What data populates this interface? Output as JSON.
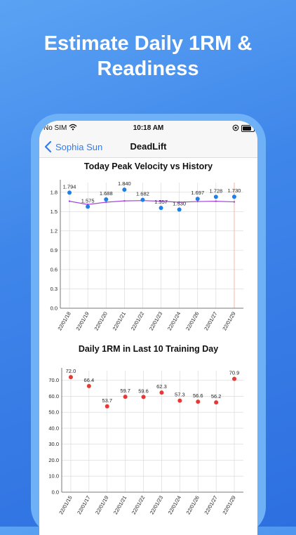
{
  "promo": {
    "headline_line1": "Estimate Daily 1RM &",
    "headline_line2": "Readiness"
  },
  "status_bar": {
    "carrier": "No SIM",
    "time": "10:18 AM"
  },
  "nav": {
    "back_label": "Sophia Sun",
    "title": "DeadLift"
  },
  "colors": {
    "accent": "#2f7cf6",
    "velocity_point": "#1e7fe6",
    "trend_line": "#a445d8",
    "rm_point": "#e53935",
    "today_line": "#f5b7a6"
  },
  "icons": {
    "wifi": "wifi-icon",
    "rotation_lock": "rotation-lock-icon",
    "battery": "battery-icon",
    "back": "chevron-left-icon"
  },
  "chart_data": [
    {
      "type": "scatter",
      "title": "Today Peak Velocity vs History",
      "categories": [
        "22/01/18",
        "22/01/19",
        "22/01/20",
        "22/01/21",
        "22/01/22",
        "22/01/23",
        "22/01/24",
        "22/01/26",
        "22/01/27",
        "22/01/29"
      ],
      "series": [
        {
          "values": [
            1.794,
            1.575,
            1.688,
            1.84,
            1.682,
            1.557,
            1.53,
            1.697,
            1.728,
            1.73
          ],
          "labels": [
            "1.794",
            "1.575",
            "1.688",
            "1.840",
            "1.682",
            "1.557",
            "1.530",
            "1.697",
            "1.728",
            "1.730"
          ]
        },
        {
          "values": [
            1.66,
            1.61,
            1.645,
            1.665,
            1.67,
            1.66,
            1.645,
            1.655,
            1.66,
            1.65
          ]
        }
      ],
      "yticks": [
        "0.0",
        "0.3",
        "0.6",
        "0.9",
        "1.2",
        "1.5",
        "1.8"
      ],
      "ylim": [
        0,
        1.95
      ],
      "grid": true,
      "highlight_category": "22/01/29"
    },
    {
      "type": "scatter",
      "title": "Daily 1RM in Last 10 Training Day",
      "categories": [
        "22/01/15",
        "22/01/17",
        "22/01/19",
        "22/01/21",
        "22/01/22",
        "22/01/23",
        "22/01/24",
        "22/01/26",
        "22/01/27",
        "22/01/29"
      ],
      "series": [
        {
          "values": [
            72.0,
            66.4,
            53.7,
            59.7,
            59.6,
            62.3,
            57.3,
            56.6,
            56.2,
            70.9
          ],
          "labels": [
            "72.0",
            "66.4",
            "53.7",
            "59.7",
            "59.6",
            "62.3",
            "57.3",
            "56.6",
            "56.2",
            "70.9"
          ]
        }
      ],
      "yticks": [
        "0.0",
        "10.0",
        "20.0",
        "30.0",
        "40.0",
        "50.0",
        "60.0",
        "70.0"
      ],
      "ylim": [
        0,
        76
      ],
      "grid": true
    }
  ]
}
